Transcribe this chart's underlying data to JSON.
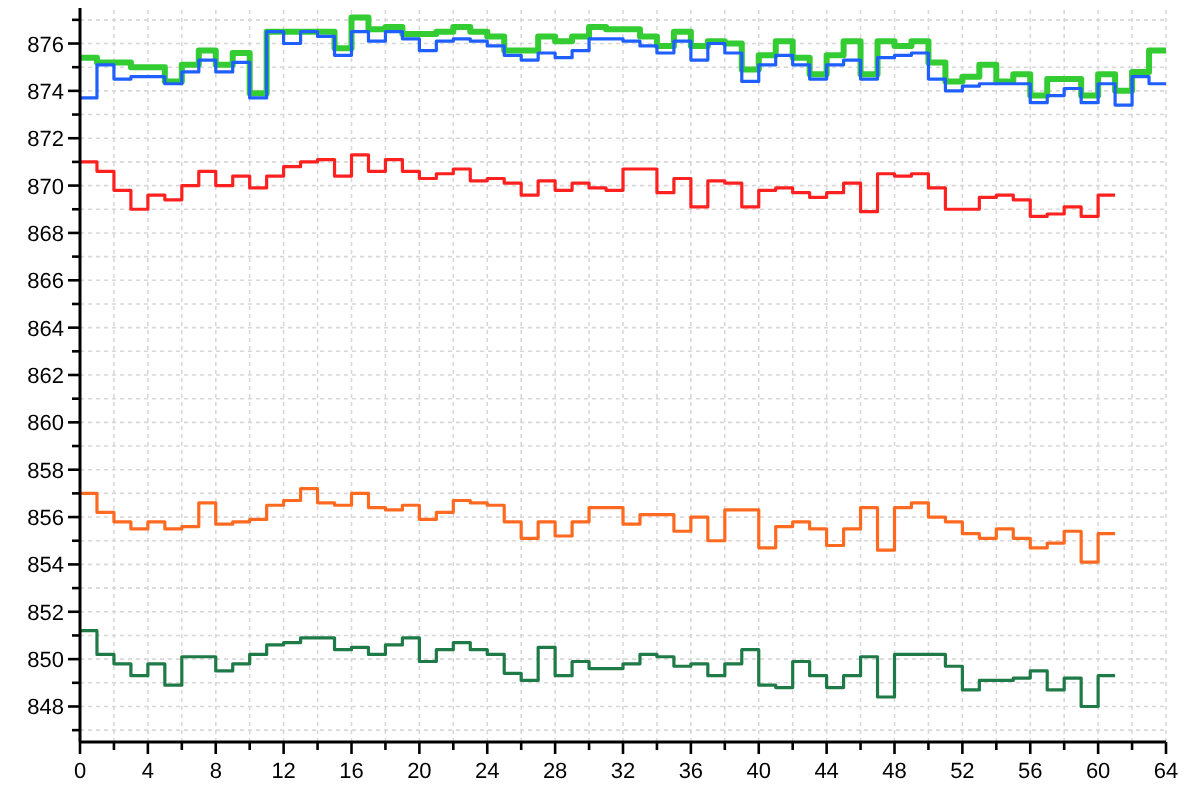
{
  "chart_data": {
    "type": "step",
    "x": [
      0,
      1,
      2,
      3,
      4,
      5,
      6,
      7,
      8,
      9,
      10,
      11,
      12,
      13,
      14,
      15,
      16,
      17,
      18,
      19,
      20,
      21,
      22,
      23,
      24,
      25,
      26,
      27,
      28,
      29,
      30,
      31,
      32,
      33,
      34,
      35,
      36,
      37,
      38,
      39,
      40,
      41,
      42,
      43,
      44,
      45,
      46,
      47,
      48,
      49,
      50,
      51,
      52,
      53,
      54,
      55,
      56,
      57,
      58,
      59,
      60,
      61,
      62,
      63,
      64
    ],
    "series": [
      {
        "color": "#33cc33",
        "values": [
          875.4,
          875.2,
          875.2,
          875.0,
          875.0,
          874.4,
          875.1,
          875.7,
          875.1,
          875.6,
          873.9,
          876.5,
          876.5,
          876.5,
          876.5,
          875.8,
          877.1,
          876.6,
          876.7,
          876.4,
          876.4,
          876.5,
          876.7,
          876.5,
          876.3,
          875.7,
          875.7,
          876.3,
          876.1,
          876.3,
          876.7,
          876.6,
          876.6,
          876.3,
          875.9,
          876.5,
          875.9,
          876.1,
          876.0,
          874.9,
          875.5,
          876.1,
          875.4,
          874.7,
          875.5,
          876.1,
          874.7,
          876.1,
          875.9,
          876.1,
          875.2,
          874.4,
          874.6,
          875.1,
          874.4,
          874.7,
          873.8,
          874.5,
          874.5,
          873.8,
          874.7,
          874.0,
          874.8,
          875.7,
          875.7
        ]
      },
      {
        "color": "#1f5fff",
        "values": [
          873.7,
          875.1,
          874.5,
          874.6,
          874.6,
          874.3,
          874.8,
          875.3,
          874.8,
          875.2,
          873.7,
          876.5,
          876.0,
          876.5,
          876.3,
          875.5,
          876.5,
          876.1,
          876.5,
          876.2,
          875.7,
          876.1,
          876.2,
          876.1,
          875.9,
          875.5,
          875.3,
          875.6,
          875.4,
          875.7,
          876.2,
          876.2,
          876.1,
          875.9,
          875.6,
          876.1,
          875.3,
          876.0,
          875.6,
          874.4,
          875.1,
          875.5,
          875.1,
          874.5,
          875.1,
          875.3,
          874.5,
          875.4,
          875.5,
          875.6,
          874.5,
          874.0,
          874.2,
          874.3,
          874.3,
          874.3,
          873.5,
          873.8,
          874.1,
          873.5,
          874.3,
          873.4,
          874.6,
          874.3,
          874.3
        ]
      },
      {
        "color": "#ff2020",
        "x": [
          0,
          1,
          2,
          3,
          4,
          5,
          6,
          7,
          8,
          9,
          10,
          11,
          12,
          13,
          14,
          15,
          16,
          17,
          18,
          19,
          20,
          21,
          22,
          23,
          24,
          25,
          26,
          27,
          28,
          29,
          30,
          31,
          32,
          33,
          34,
          35,
          36,
          37,
          38,
          39,
          40,
          41,
          42,
          43,
          44,
          45,
          46,
          47,
          48,
          49,
          50,
          51,
          52,
          53,
          54,
          55,
          56,
          57,
          58,
          59,
          60,
          61
        ],
        "values": [
          871.0,
          870.6,
          869.8,
          869.0,
          869.6,
          869.4,
          870.0,
          870.6,
          870.0,
          870.4,
          869.9,
          870.4,
          870.8,
          871.0,
          871.1,
          870.4,
          871.3,
          870.6,
          871.1,
          870.6,
          870.3,
          870.5,
          870.7,
          870.2,
          870.3,
          870.1,
          869.6,
          870.2,
          869.8,
          870.1,
          869.9,
          869.8,
          870.7,
          870.7,
          869.7,
          870.3,
          869.1,
          870.2,
          870.1,
          869.1,
          869.8,
          869.9,
          869.7,
          869.5,
          869.7,
          870.1,
          868.9,
          870.5,
          870.4,
          870.5,
          869.9,
          869.0,
          869.0,
          869.5,
          869.6,
          869.4,
          868.7,
          868.8,
          869.1,
          868.7,
          869.6,
          869.6
        ]
      },
      {
        "color": "#ff6a20",
        "x": [
          0,
          1,
          2,
          3,
          4,
          5,
          6,
          7,
          8,
          9,
          10,
          11,
          12,
          13,
          14,
          15,
          16,
          17,
          18,
          19,
          20,
          21,
          22,
          23,
          24,
          25,
          26,
          27,
          28,
          29,
          30,
          31,
          32,
          33,
          34,
          35,
          36,
          37,
          38,
          39,
          40,
          41,
          42,
          43,
          44,
          45,
          46,
          47,
          48,
          49,
          50,
          51,
          52,
          53,
          54,
          55,
          56,
          57,
          58,
          59,
          60,
          61
        ],
        "values": [
          857.0,
          856.2,
          855.8,
          855.5,
          855.8,
          855.5,
          855.6,
          856.6,
          855.7,
          855.8,
          855.9,
          856.5,
          856.7,
          857.2,
          856.6,
          856.5,
          857.0,
          856.4,
          856.3,
          856.5,
          855.9,
          856.2,
          856.7,
          856.6,
          856.5,
          855.8,
          855.1,
          855.8,
          855.2,
          855.8,
          856.4,
          856.4,
          855.7,
          856.1,
          856.1,
          855.4,
          856.0,
          855.0,
          856.3,
          856.3,
          854.7,
          855.6,
          855.8,
          855.5,
          854.8,
          855.5,
          856.4,
          854.6,
          856.4,
          856.6,
          856.0,
          855.8,
          855.3,
          855.1,
          855.5,
          855.1,
          854.7,
          854.9,
          855.4,
          854.1,
          855.3,
          855.3
        ]
      },
      {
        "color": "#1e7a46",
        "x": [
          0,
          1,
          2,
          3,
          4,
          5,
          6,
          7,
          8,
          9,
          10,
          11,
          12,
          13,
          14,
          15,
          16,
          17,
          18,
          19,
          20,
          21,
          22,
          23,
          24,
          25,
          26,
          27,
          28,
          29,
          30,
          31,
          32,
          33,
          34,
          35,
          36,
          37,
          38,
          39,
          40,
          41,
          42,
          43,
          44,
          45,
          46,
          47,
          48,
          49,
          50,
          51,
          52,
          53,
          54,
          55,
          56,
          57,
          58,
          59,
          60,
          61
        ],
        "values": [
          851.2,
          850.2,
          849.8,
          849.3,
          849.8,
          848.9,
          850.1,
          850.1,
          849.5,
          849.8,
          850.2,
          850.6,
          850.7,
          850.9,
          850.9,
          850.4,
          850.5,
          850.2,
          850.6,
          850.9,
          849.9,
          850.4,
          850.7,
          850.4,
          850.2,
          849.4,
          849.1,
          850.5,
          849.3,
          849.9,
          849.6,
          849.6,
          849.8,
          850.2,
          850.1,
          849.7,
          849.8,
          849.3,
          849.8,
          850.4,
          848.9,
          848.8,
          849.9,
          849.3,
          848.8,
          849.3,
          850.1,
          848.4,
          850.2,
          850.2,
          850.2,
          849.7,
          848.7,
          849.1,
          849.1,
          849.2,
          849.5,
          848.7,
          849.2,
          848.0,
          849.3,
          849.3
        ]
      }
    ],
    "xlim": [
      0,
      64
    ],
    "xticks": [
      0,
      {
        "value": 2,
        "label": null
      },
      4,
      {
        "value": 6,
        "label": null
      },
      8,
      {
        "value": 10,
        "label": null
      },
      12,
      {
        "value": 14,
        "label": null
      },
      16,
      {
        "value": 18,
        "label": null
      },
      20,
      {
        "value": 22,
        "label": null
      },
      24,
      {
        "value": 26,
        "label": null
      },
      28,
      {
        "value": 30,
        "label": null
      },
      32,
      {
        "value": 34,
        "label": null
      },
      36,
      {
        "value": 38,
        "label": null
      },
      40,
      {
        "value": 42,
        "label": null
      },
      44,
      {
        "value": 46,
        "label": null
      },
      48,
      {
        "value": 50,
        "label": null
      },
      52,
      {
        "value": 54,
        "label": null
      },
      56,
      {
        "value": 58,
        "label": null
      },
      60,
      {
        "value": 62,
        "label": null
      },
      64
    ],
    "ylim": [
      846.5,
      877.5
    ],
    "yticks": [
      {
        "value": 847,
        "label": null
      },
      848,
      {
        "value": 849,
        "label": null
      },
      850,
      {
        "value": 851,
        "label": null
      },
      852,
      {
        "value": 853,
        "label": null
      },
      854,
      {
        "value": 855,
        "label": null
      },
      856,
      {
        "value": 857,
        "label": null
      },
      858,
      {
        "value": 859,
        "label": null
      },
      860,
      {
        "value": 861,
        "label": null
      },
      862,
      {
        "value": 863,
        "label": null
      },
      864,
      {
        "value": 865,
        "label": null
      },
      866,
      {
        "value": 867,
        "label": null
      },
      868,
      {
        "value": 869,
        "label": null
      },
      870,
      {
        "value": 871,
        "label": null
      },
      872,
      {
        "value": 873,
        "label": null
      },
      874,
      {
        "value": 875,
        "label": null
      },
      876,
      {
        "value": 877,
        "label": null
      }
    ],
    "grid": true
  }
}
